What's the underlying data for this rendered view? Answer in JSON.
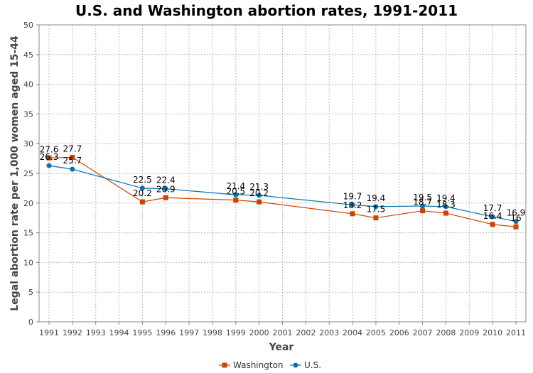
{
  "chart_data": {
    "type": "line",
    "title": "U.S. and Washington abortion rates, 1991-2011",
    "xlabel": "Year",
    "ylabel": "Legal abortion rate per 1,000 women aged 15-44",
    "categories": [
      "1991",
      "1992",
      "1993",
      "1994",
      "1995",
      "1996",
      "1997",
      "1998",
      "1999",
      "2000",
      "2001",
      "2002",
      "2003",
      "2004",
      "2005",
      "2006",
      "2007",
      "2008",
      "2009",
      "2010",
      "2011"
    ],
    "ylim": [
      0,
      50
    ],
    "yticks": [
      0,
      5,
      10,
      15,
      20,
      25,
      30,
      35,
      40,
      45,
      50
    ],
    "grid": true,
    "legend_position": "bottom",
    "series": [
      {
        "name": "Washington",
        "color": "#cc4400",
        "marker": "square",
        "points": [
          {
            "x": "1991",
            "y": 27.6,
            "label": "27.6"
          },
          {
            "x": "1992",
            "y": 27.7,
            "label": "27.7"
          },
          {
            "x": "1995",
            "y": 20.2,
            "label": "20.2"
          },
          {
            "x": "1996",
            "y": 20.9,
            "label": "20.9"
          },
          {
            "x": "1999",
            "y": 20.5,
            "label": "20.5"
          },
          {
            "x": "2000",
            "y": 20.2,
            "label": "20.2"
          },
          {
            "x": "2004",
            "y": 18.2,
            "label": "18.2"
          },
          {
            "x": "2005",
            "y": 17.5,
            "label": "17.5"
          },
          {
            "x": "2007",
            "y": 18.7,
            "label": "18.7"
          },
          {
            "x": "2008",
            "y": 18.3,
            "label": "18.3"
          },
          {
            "x": "2010",
            "y": 16.4,
            "label": "16.4"
          },
          {
            "x": "2011",
            "y": 16,
            "label": "16"
          }
        ]
      },
      {
        "name": "U.S.",
        "color": "#0a72b0",
        "marker": "circle",
        "points": [
          {
            "x": "1991",
            "y": 26.3,
            "label": "26.3"
          },
          {
            "x": "1992",
            "y": 25.7,
            "label": "25.7"
          },
          {
            "x": "1995",
            "y": 22.5,
            "label": "22.5"
          },
          {
            "x": "1996",
            "y": 22.4,
            "label": "22.4"
          },
          {
            "x": "1999",
            "y": 21.4,
            "label": "21.4"
          },
          {
            "x": "2000",
            "y": 21.3,
            "label": "21.3"
          },
          {
            "x": "2004",
            "y": 19.7,
            "label": "19.7"
          },
          {
            "x": "2005",
            "y": 19.4,
            "label": "19.4"
          },
          {
            "x": "2007",
            "y": 19.5,
            "label": "19.5"
          },
          {
            "x": "2008",
            "y": 19.4,
            "label": "19.4"
          },
          {
            "x": "2010",
            "y": 17.7,
            "label": "17.7"
          },
          {
            "x": "2011",
            "y": 16.9,
            "label": "16.9"
          }
        ]
      }
    ]
  }
}
